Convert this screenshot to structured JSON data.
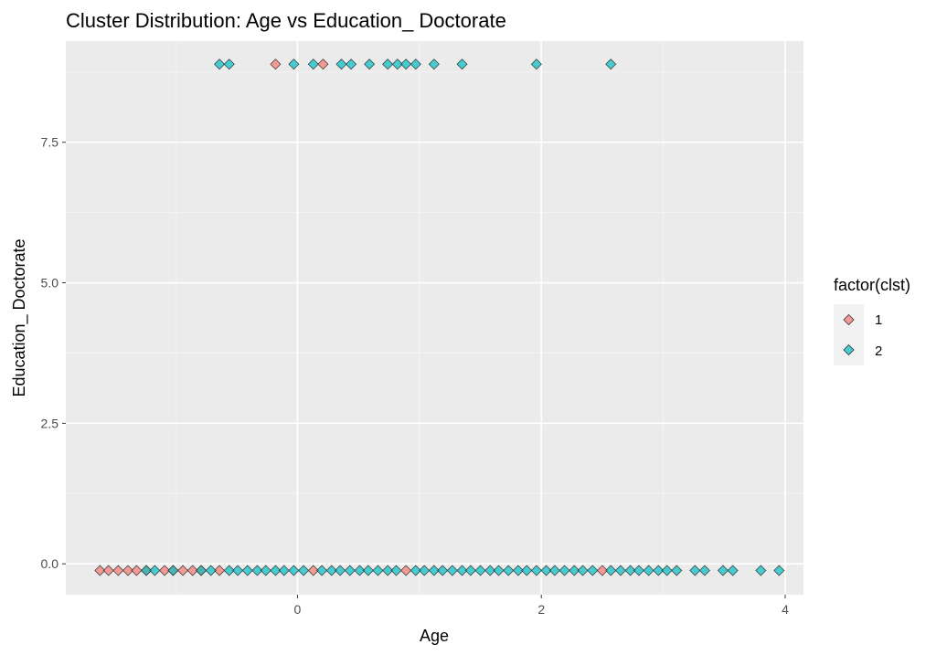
{
  "chart_data": {
    "type": "scatter",
    "title": "Cluster Distribution: Age vs Education_ Doctorate",
    "xlabel": "Age",
    "ylabel": "Education_ Doctorate",
    "xlim": [
      -1.9,
      4.15
    ],
    "ylim": [
      -0.55,
      9.3
    ],
    "x_ticks": [
      0,
      2,
      4
    ],
    "x_tick_labels": [
      "0",
      "2",
      "4"
    ],
    "y_ticks": [
      0,
      2.5,
      5,
      7.5
    ],
    "y_tick_labels": [
      "0.0",
      "2.5",
      "5.0",
      "7.5"
    ],
    "grid": true,
    "marker": "diamond",
    "legend": {
      "title": "factor(clst)",
      "position": "right",
      "entries": [
        {
          "label": "1",
          "color": "#F8766D"
        },
        {
          "label": "2",
          "color": "#00BFC4"
        }
      ]
    },
    "series": [
      {
        "name": "1",
        "color": "#F8766D",
        "points": [
          [
            -1.62,
            -0.12
          ],
          [
            -1.55,
            -0.12
          ],
          [
            -1.47,
            -0.12
          ],
          [
            -1.39,
            -0.12
          ],
          [
            -1.32,
            -0.12
          ],
          [
            -1.24,
            -0.12
          ],
          [
            -1.09,
            -0.12
          ],
          [
            -1.02,
            -0.12
          ],
          [
            -0.94,
            -0.12
          ],
          [
            -0.86,
            -0.12
          ],
          [
            -0.79,
            -0.12
          ],
          [
            -0.64,
            -0.12
          ],
          [
            0.13,
            -0.12
          ],
          [
            0.89,
            -0.12
          ],
          [
            2.5,
            -0.12
          ],
          [
            -0.18,
            8.89
          ],
          [
            0.21,
            8.89
          ]
        ]
      },
      {
        "name": "2",
        "color": "#00BFC4",
        "points": [
          [
            -1.24,
            -0.12
          ],
          [
            -1.17,
            -0.12
          ],
          [
            -1.02,
            -0.12
          ],
          [
            -0.79,
            -0.12
          ],
          [
            -0.71,
            -0.12
          ],
          [
            -0.56,
            -0.12
          ],
          [
            -0.49,
            -0.12
          ],
          [
            -0.41,
            -0.12
          ],
          [
            -0.33,
            -0.12
          ],
          [
            -0.26,
            -0.12
          ],
          [
            -0.18,
            -0.12
          ],
          [
            -0.11,
            -0.12
          ],
          [
            -0.03,
            -0.12
          ],
          [
            0.05,
            -0.12
          ],
          [
            0.2,
            -0.12
          ],
          [
            0.28,
            -0.12
          ],
          [
            0.35,
            -0.12
          ],
          [
            0.43,
            -0.12
          ],
          [
            0.51,
            -0.12
          ],
          [
            0.58,
            -0.12
          ],
          [
            0.66,
            -0.12
          ],
          [
            0.74,
            -0.12
          ],
          [
            0.81,
            -0.12
          ],
          [
            0.97,
            -0.12
          ],
          [
            1.04,
            -0.12
          ],
          [
            1.12,
            -0.12
          ],
          [
            1.19,
            -0.12
          ],
          [
            1.27,
            -0.12
          ],
          [
            1.35,
            -0.12
          ],
          [
            1.42,
            -0.12
          ],
          [
            1.5,
            -0.12
          ],
          [
            1.58,
            -0.12
          ],
          [
            1.65,
            -0.12
          ],
          [
            1.73,
            -0.12
          ],
          [
            1.81,
            -0.12
          ],
          [
            1.88,
            -0.12
          ],
          [
            1.96,
            -0.12
          ],
          [
            2.04,
            -0.12
          ],
          [
            2.11,
            -0.12
          ],
          [
            2.19,
            -0.12
          ],
          [
            2.27,
            -0.12
          ],
          [
            2.34,
            -0.12
          ],
          [
            2.42,
            -0.12
          ],
          [
            2.57,
            -0.12
          ],
          [
            2.65,
            -0.12
          ],
          [
            2.73,
            -0.12
          ],
          [
            2.8,
            -0.12
          ],
          [
            2.88,
            -0.12
          ],
          [
            2.96,
            -0.12
          ],
          [
            3.03,
            -0.12
          ],
          [
            3.11,
            -0.12
          ],
          [
            3.26,
            -0.12
          ],
          [
            3.34,
            -0.12
          ],
          [
            3.49,
            -0.12
          ],
          [
            3.57,
            -0.12
          ],
          [
            3.8,
            -0.12
          ],
          [
            3.95,
            -0.12
          ],
          [
            -0.64,
            8.89
          ],
          [
            -0.56,
            8.89
          ],
          [
            -0.03,
            8.89
          ],
          [
            0.13,
            8.89
          ],
          [
            0.36,
            8.89
          ],
          [
            0.44,
            8.89
          ],
          [
            0.59,
            8.89
          ],
          [
            0.74,
            8.89
          ],
          [
            0.82,
            8.89
          ],
          [
            0.89,
            8.89
          ],
          [
            0.97,
            8.89
          ],
          [
            1.12,
            8.89
          ],
          [
            1.35,
            8.89
          ],
          [
            1.96,
            8.89
          ],
          [
            2.57,
            8.89
          ]
        ]
      }
    ]
  }
}
